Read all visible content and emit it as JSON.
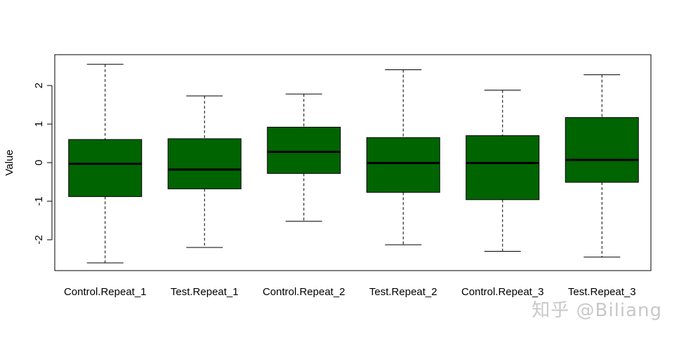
{
  "watermark": "知乎 @Biliang",
  "chart_data": {
    "type": "boxplot",
    "title": "",
    "xlabel": "",
    "ylabel": "Value",
    "ylim": [
      -2.8,
      2.8
    ],
    "yticks": [
      -2,
      -1,
      0,
      1,
      2
    ],
    "ytick_labels": [
      "-2",
      "-1",
      "0",
      "1",
      "2"
    ],
    "box_color": "#006400",
    "grid": false,
    "categories": [
      "Control.Repeat_1",
      "Test.Repeat_1",
      "Control.Repeat_2",
      "Test.Repeat_2",
      "Control.Repeat_3",
      "Test.Repeat_3"
    ],
    "boxes": [
      {
        "whisker_low": -2.6,
        "q1": -0.88,
        "median": -0.03,
        "q3": 0.6,
        "whisker_high": 2.55
      },
      {
        "whisker_low": -2.2,
        "q1": -0.68,
        "median": -0.18,
        "q3": 0.62,
        "whisker_high": 1.73
      },
      {
        "whisker_low": -1.52,
        "q1": -0.28,
        "median": 0.28,
        "q3": 0.92,
        "whisker_high": 1.78
      },
      {
        "whisker_low": -2.13,
        "q1": -0.77,
        "median": -0.01,
        "q3": 0.65,
        "whisker_high": 2.41
      },
      {
        "whisker_low": -2.3,
        "q1": -0.96,
        "median": -0.01,
        "q3": 0.7,
        "whisker_high": 1.88
      },
      {
        "whisker_low": -2.45,
        "q1": -0.51,
        "median": 0.07,
        "q3": 1.17,
        "whisker_high": 2.28
      }
    ]
  }
}
